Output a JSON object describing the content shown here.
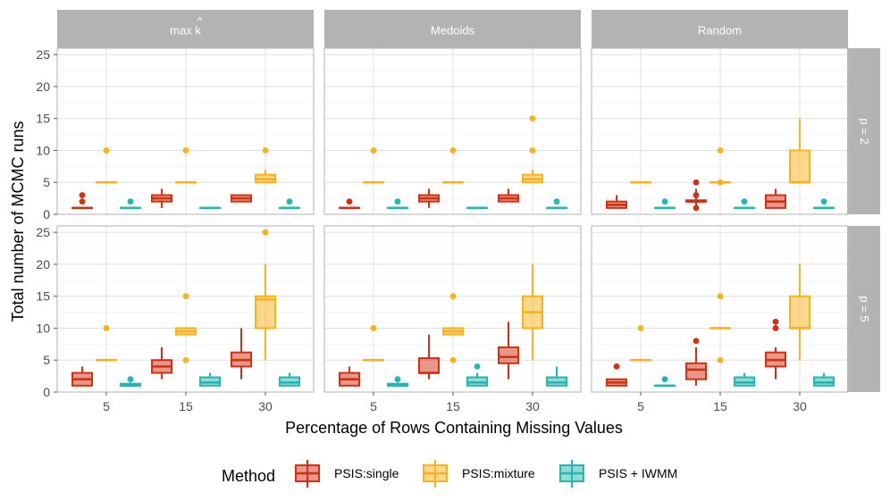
{
  "chart_data": {
    "type": "boxplot",
    "title": "",
    "xlabel": "Percentage of Rows Containing Missing Values",
    "ylabel": "Total number of MCMC runs",
    "x_categories": [
      "5",
      "15",
      "30"
    ],
    "ylim": [
      0,
      26
    ],
    "y_ticks": [
      0,
      5,
      10,
      15,
      20,
      25
    ],
    "grid": true,
    "facet_columns": [
      "max k",
      "Medoids",
      "Random"
    ],
    "facet_column_hat": "^",
    "facet_rows": [
      "p = 2",
      "p = 5"
    ],
    "legend": {
      "title": "Method",
      "position": "bottom",
      "entries": [
        "PSIS:single",
        "PSIS:mixture",
        "PSIS + IWMM"
      ]
    },
    "colors": {
      "PSIS:single": "#d32f12",
      "PSIS:mixture": "#f9b21c",
      "PSIS + IWMM": "#24b7b0",
      "strip_bg": "#b3b3b3",
      "grid": "#e0e0e0"
    },
    "panels": [
      {
        "column": "max k",
        "row": "p = 2",
        "boxes": {
          "PSIS:single": [
            {
              "x": "5",
              "min": 1,
              "q1": 1,
              "median": 1,
              "q3": 1,
              "max": 1,
              "outliers": [
                2,
                3
              ]
            },
            {
              "x": "15",
              "min": 1,
              "q1": 2,
              "median": 2.5,
              "q3": 3,
              "max": 4,
              "outliers": []
            },
            {
              "x": "30",
              "min": 2,
              "q1": 2,
              "median": 2.5,
              "q3": 3,
              "max": 3,
              "outliers": []
            }
          ],
          "PSIS:mixture": [
            {
              "x": "5",
              "min": 5,
              "q1": 5,
              "median": 5,
              "q3": 5,
              "max": 5,
              "outliers": [
                10
              ]
            },
            {
              "x": "15",
              "min": 5,
              "q1": 5,
              "median": 5,
              "q3": 5,
              "max": 5,
              "outliers": [
                10
              ]
            },
            {
              "x": "30",
              "min": 5,
              "q1": 5,
              "median": 5.5,
              "q3": 6.2,
              "max": 7,
              "outliers": [
                10
              ]
            }
          ],
          "PSIS + IWMM": [
            {
              "x": "5",
              "min": 1,
              "q1": 1,
              "median": 1,
              "q3": 1,
              "max": 1,
              "outliers": [
                2
              ]
            },
            {
              "x": "15",
              "min": 1,
              "q1": 1,
              "median": 1,
              "q3": 1,
              "max": 1,
              "outliers": []
            },
            {
              "x": "30",
              "min": 1,
              "q1": 1,
              "median": 1,
              "q3": 1,
              "max": 1,
              "outliers": [
                2
              ]
            }
          ]
        }
      },
      {
        "column": "Medoids",
        "row": "p = 2",
        "boxes": {
          "PSIS:single": [
            {
              "x": "5",
              "min": 1,
              "q1": 1,
              "median": 1,
              "q3": 1,
              "max": 1,
              "outliers": [
                2
              ]
            },
            {
              "x": "15",
              "min": 1,
              "q1": 2,
              "median": 2.5,
              "q3": 3,
              "max": 4,
              "outliers": []
            },
            {
              "x": "30",
              "min": 2,
              "q1": 2,
              "median": 2.5,
              "q3": 3,
              "max": 4,
              "outliers": []
            }
          ],
          "PSIS:mixture": [
            {
              "x": "5",
              "min": 5,
              "q1": 5,
              "median": 5,
              "q3": 5,
              "max": 5,
              "outliers": [
                10
              ]
            },
            {
              "x": "15",
              "min": 5,
              "q1": 5,
              "median": 5,
              "q3": 5,
              "max": 5,
              "outliers": [
                10
              ]
            },
            {
              "x": "30",
              "min": 5,
              "q1": 5,
              "median": 5.5,
              "q3": 6.2,
              "max": 7,
              "outliers": [
                10,
                15
              ]
            }
          ],
          "PSIS + IWMM": [
            {
              "x": "5",
              "min": 1,
              "q1": 1,
              "median": 1,
              "q3": 1,
              "max": 1,
              "outliers": [
                2
              ]
            },
            {
              "x": "15",
              "min": 1,
              "q1": 1,
              "median": 1,
              "q3": 1,
              "max": 1,
              "outliers": []
            },
            {
              "x": "30",
              "min": 1,
              "q1": 1,
              "median": 1,
              "q3": 1,
              "max": 1,
              "outliers": [
                2
              ]
            }
          ]
        }
      },
      {
        "column": "Random",
        "row": "p = 2",
        "boxes": {
          "PSIS:single": [
            {
              "x": "5",
              "min": 1,
              "q1": 1,
              "median": 1.5,
              "q3": 2,
              "max": 3,
              "outliers": []
            },
            {
              "x": "15",
              "min": 1,
              "q1": 2,
              "median": 2,
              "q3": 2.2,
              "max": 4,
              "outliers": [
                1,
                3,
                5
              ]
            },
            {
              "x": "30",
              "min": 1,
              "q1": 1,
              "median": 2,
              "q3": 3,
              "max": 4,
              "outliers": []
            }
          ],
          "PSIS:mixture": [
            {
              "x": "5",
              "min": 5,
              "q1": 5,
              "median": 5,
              "q3": 5,
              "max": 5,
              "outliers": []
            },
            {
              "x": "15",
              "min": 5,
              "q1": 5,
              "median": 5,
              "q3": 5,
              "max": 5,
              "outliers": [
                5,
                10
              ]
            },
            {
              "x": "30",
              "min": 5,
              "q1": 5,
              "median": 5,
              "q3": 10,
              "max": 15,
              "outliers": []
            }
          ],
          "PSIS + IWMM": [
            {
              "x": "5",
              "min": 1,
              "q1": 1,
              "median": 1,
              "q3": 1,
              "max": 1,
              "outliers": [
                2
              ]
            },
            {
              "x": "15",
              "min": 1,
              "q1": 1,
              "median": 1,
              "q3": 1,
              "max": 1,
              "outliers": [
                2
              ]
            },
            {
              "x": "30",
              "min": 1,
              "q1": 1,
              "median": 1,
              "q3": 1,
              "max": 1,
              "outliers": [
                2
              ]
            }
          ]
        }
      },
      {
        "column": "max k",
        "row": "p = 5",
        "boxes": {
          "PSIS:single": [
            {
              "x": "5",
              "min": 1,
              "q1": 1,
              "median": 2,
              "q3": 3,
              "max": 4,
              "outliers": []
            },
            {
              "x": "15",
              "min": 2,
              "q1": 3,
              "median": 4,
              "q3": 5,
              "max": 7,
              "outliers": []
            },
            {
              "x": "30",
              "min": 2,
              "q1": 4,
              "median": 5,
              "q3": 6.2,
              "max": 10,
              "outliers": []
            }
          ],
          "PSIS:mixture": [
            {
              "x": "5",
              "min": 5,
              "q1": 5,
              "median": 5,
              "q3": 5,
              "max": 5,
              "outliers": [
                10
              ]
            },
            {
              "x": "15",
              "min": 9,
              "q1": 9,
              "median": 9.5,
              "q3": 10,
              "max": 10,
              "outliers": [
                5,
                15
              ]
            },
            {
              "x": "30",
              "min": 5,
              "q1": 10,
              "median": 14.5,
              "q3": 15,
              "max": 20,
              "outliers": [
                25
              ]
            }
          ],
          "PSIS + IWMM": [
            {
              "x": "5",
              "min": 1,
              "q1": 1,
              "median": 1,
              "q3": 1.3,
              "max": 1.5,
              "outliers": [
                2
              ]
            },
            {
              "x": "15",
              "min": 1,
              "q1": 1,
              "median": 1.5,
              "q3": 2.3,
              "max": 3,
              "outliers": []
            },
            {
              "x": "30",
              "min": 1,
              "q1": 1,
              "median": 1.5,
              "q3": 2.3,
              "max": 3,
              "outliers": []
            }
          ]
        }
      },
      {
        "column": "Medoids",
        "row": "p = 5",
        "boxes": {
          "PSIS:single": [
            {
              "x": "5",
              "min": 1,
              "q1": 1,
              "median": 2,
              "q3": 3,
              "max": 4,
              "outliers": []
            },
            {
              "x": "15",
              "min": 2,
              "q1": 3,
              "median": 3,
              "q3": 5.3,
              "max": 9,
              "outliers": []
            },
            {
              "x": "30",
              "min": 2,
              "q1": 4.5,
              "median": 5.5,
              "q3": 7,
              "max": 11,
              "outliers": []
            }
          ],
          "PSIS:mixture": [
            {
              "x": "5",
              "min": 5,
              "q1": 5,
              "median": 5,
              "q3": 5,
              "max": 5,
              "outliers": [
                10
              ]
            },
            {
              "x": "15",
              "min": 9,
              "q1": 9,
              "median": 9.5,
              "q3": 10,
              "max": 10,
              "outliers": [
                5,
                15
              ]
            },
            {
              "x": "30",
              "min": 5,
              "q1": 10,
              "median": 12.5,
              "q3": 15,
              "max": 20,
              "outliers": []
            }
          ],
          "PSIS + IWMM": [
            {
              "x": "5",
              "min": 1,
              "q1": 1,
              "median": 1,
              "q3": 1.3,
              "max": 1.5,
              "outliers": [
                2
              ]
            },
            {
              "x": "15",
              "min": 1,
              "q1": 1,
              "median": 1.5,
              "q3": 2.3,
              "max": 3,
              "outliers": [
                4
              ]
            },
            {
              "x": "30",
              "min": 1,
              "q1": 1,
              "median": 1.5,
              "q3": 2.3,
              "max": 4,
              "outliers": []
            }
          ]
        }
      },
      {
        "column": "Random",
        "row": "p = 5",
        "boxes": {
          "PSIS:single": [
            {
              "x": "5",
              "min": 1,
              "q1": 1,
              "median": 1.5,
              "q3": 2,
              "max": 2,
              "outliers": [
                4
              ]
            },
            {
              "x": "15",
              "min": 1,
              "q1": 2,
              "median": 3.5,
              "q3": 4.5,
              "max": 7,
              "outliers": [
                8
              ]
            },
            {
              "x": "30",
              "min": 2,
              "q1": 4,
              "median": 5,
              "q3": 6.2,
              "max": 7,
              "outliers": [
                10,
                11
              ]
            }
          ],
          "PSIS:mixture": [
            {
              "x": "5",
              "min": 5,
              "q1": 5,
              "median": 5,
              "q3": 5,
              "max": 5,
              "outliers": [
                10
              ]
            },
            {
              "x": "15",
              "min": 10,
              "q1": 10,
              "median": 10,
              "q3": 10,
              "max": 10,
              "outliers": [
                5,
                15
              ]
            },
            {
              "x": "30",
              "min": 5,
              "q1": 10,
              "median": 10,
              "q3": 15,
              "max": 20,
              "outliers": []
            }
          ],
          "PSIS + IWMM": [
            {
              "x": "5",
              "min": 1,
              "q1": 1,
              "median": 1,
              "q3": 1,
              "max": 1,
              "outliers": [
                2
              ]
            },
            {
              "x": "15",
              "min": 1,
              "q1": 1,
              "median": 1.5,
              "q3": 2.3,
              "max": 3,
              "outliers": []
            },
            {
              "x": "30",
              "min": 1,
              "q1": 1,
              "median": 1.5,
              "q3": 2.3,
              "max": 3,
              "outliers": []
            }
          ]
        }
      }
    ]
  }
}
